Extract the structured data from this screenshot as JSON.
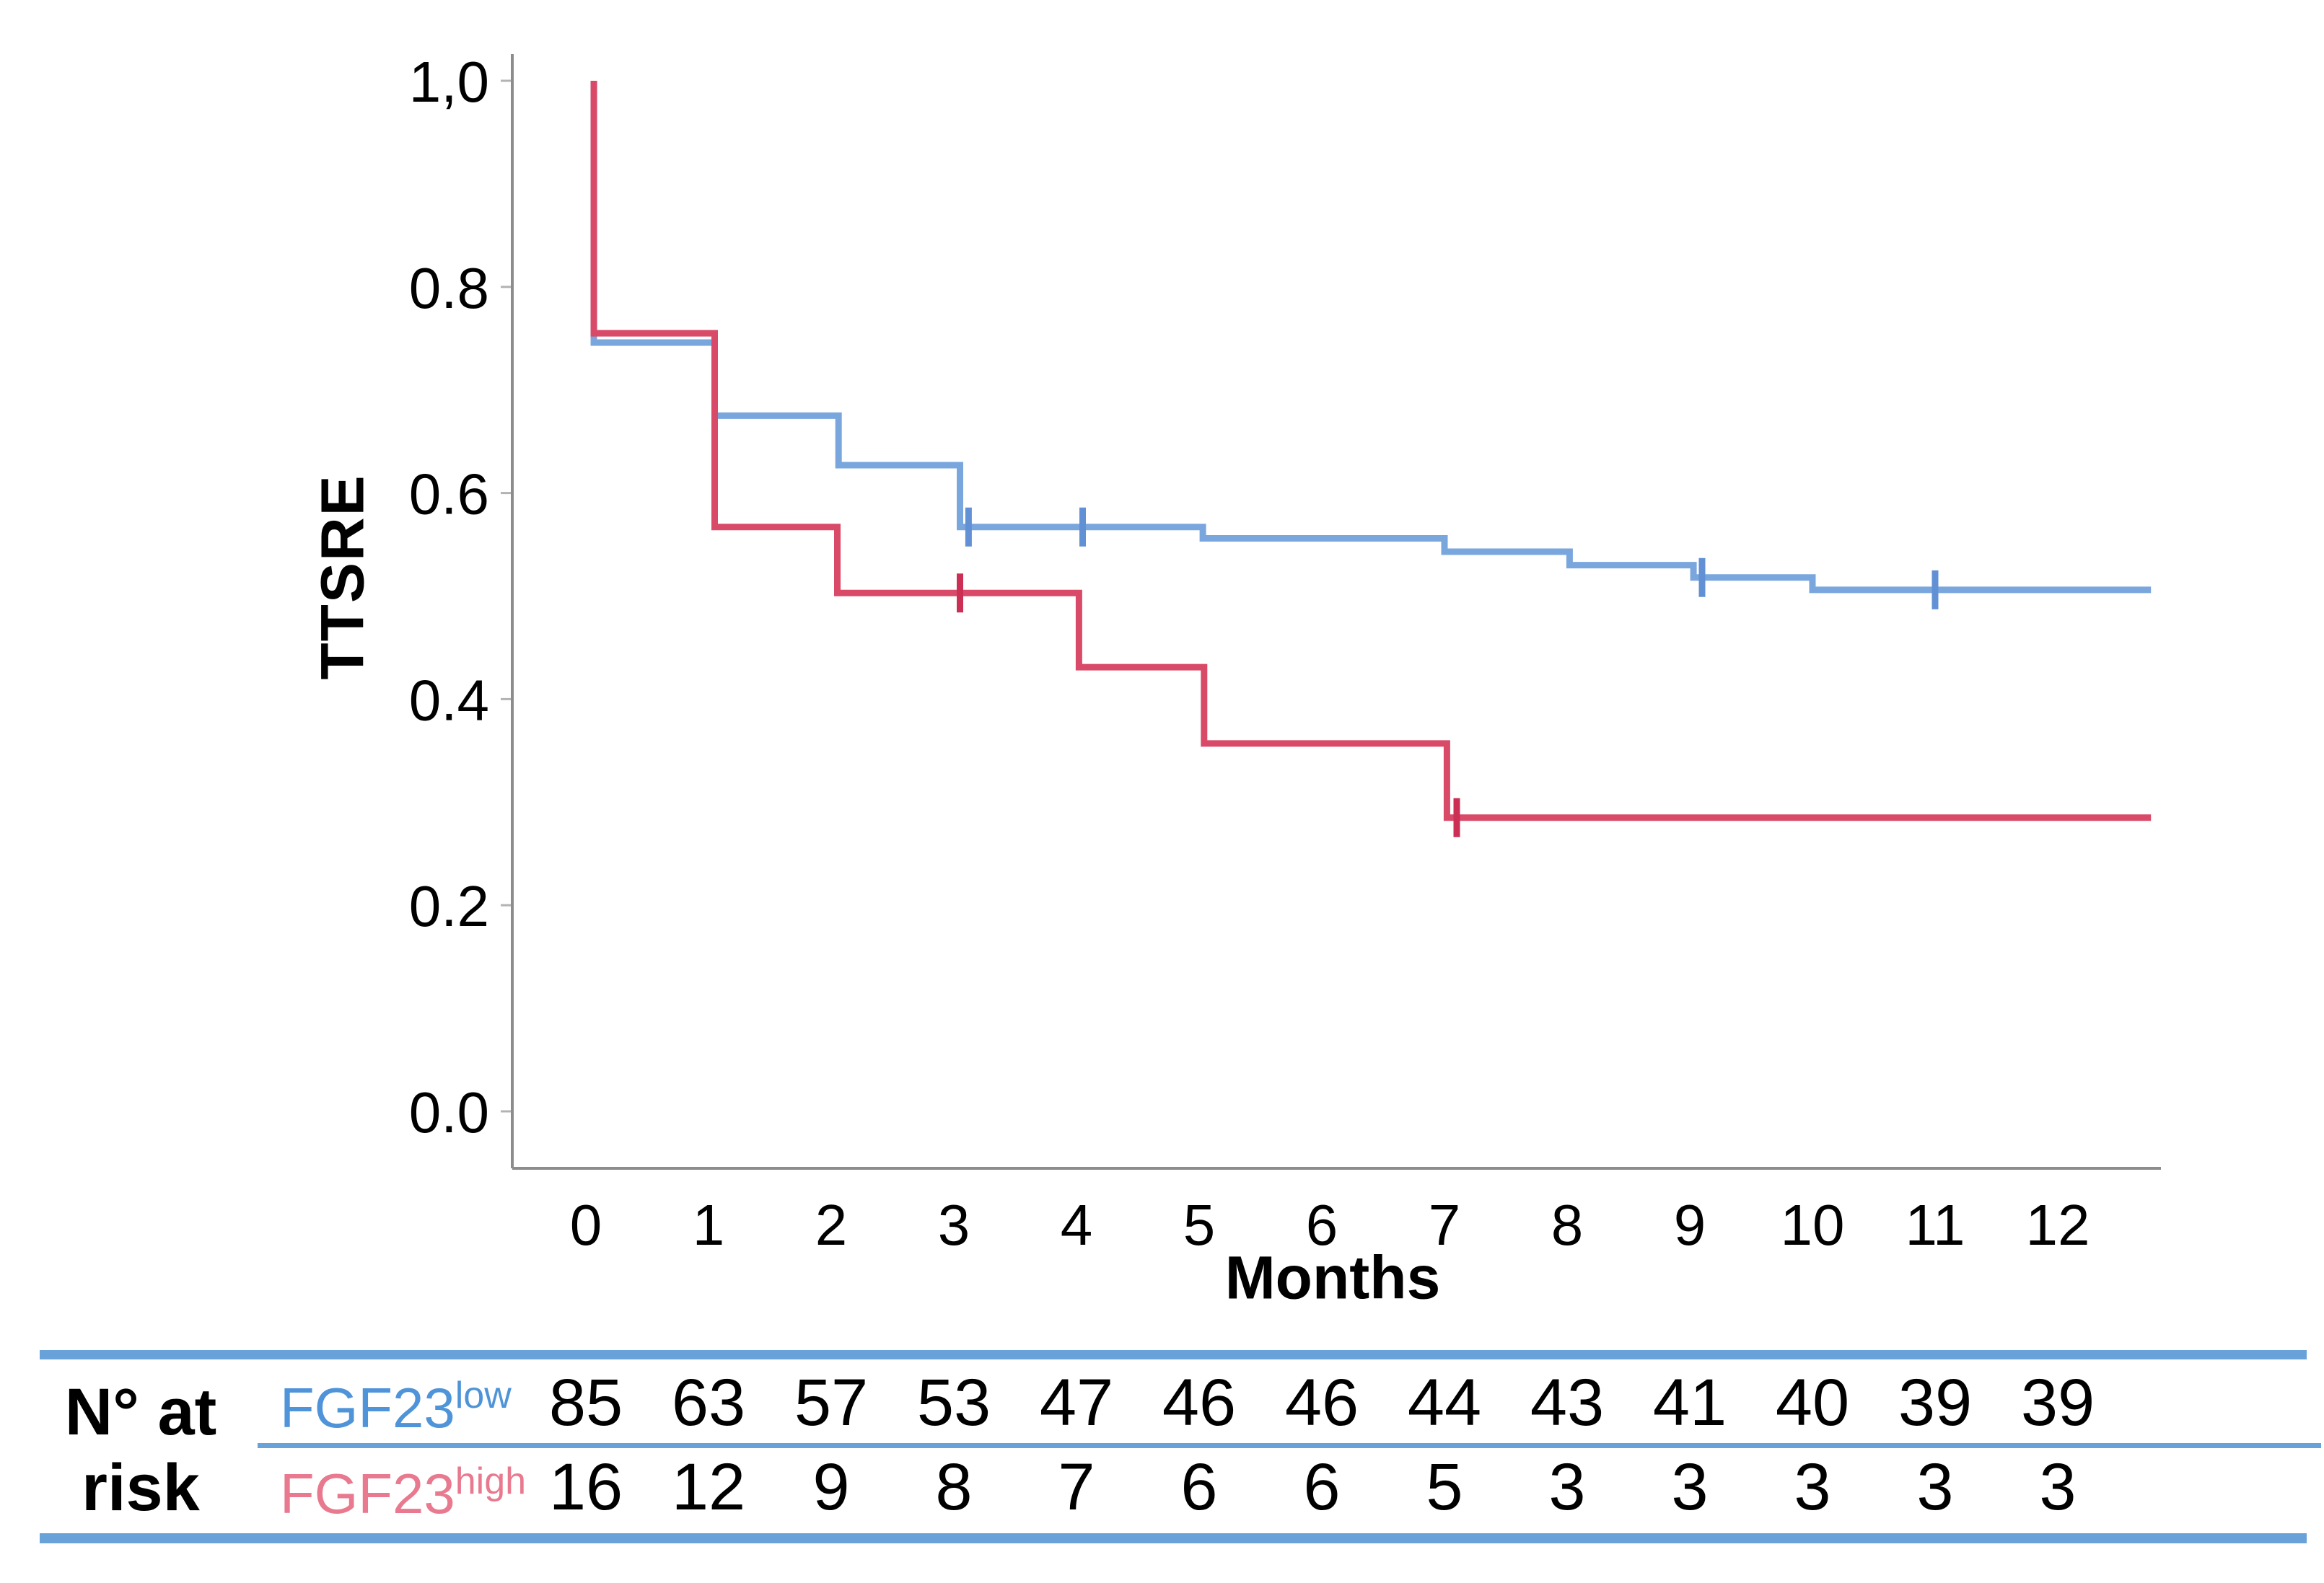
{
  "chart_data": {
    "type": "line",
    "subtype": "kaplan-meier-step",
    "title": "",
    "xlabel": "Months",
    "ylabel": "TTSRE",
    "xlim": [
      -0.6,
      12.8
    ],
    "ylim": [
      0.0,
      1.0
    ],
    "grid": false,
    "legend_position": "none",
    "x_ticks": [
      "0",
      "1",
      "2",
      "3",
      "4",
      "5",
      "6",
      "7",
      "8",
      "9",
      "10",
      "11",
      "12"
    ],
    "y_ticks": [
      {
        "label": "1,0",
        "value": 1.0
      },
      {
        "label": "0.8",
        "value": 0.8
      },
      {
        "label": "0.6",
        "value": 0.6
      },
      {
        "label": "0.4",
        "value": 0.4
      },
      {
        "label": "0.2",
        "value": 0.2
      },
      {
        "label": "0.0",
        "value": 0.0
      }
    ],
    "series": [
      {
        "name": "FGF23low",
        "color": "#7aa6de",
        "censor_color": "#6191d4",
        "end_t": 12.76,
        "steps": [
          {
            "t": 0.065,
            "v": 1.0
          },
          {
            "t": 0.065,
            "v": 0.746
          },
          {
            "t": 1.05,
            "v": 0.675
          },
          {
            "t": 2.06,
            "v": 0.627
          },
          {
            "t": 3.05,
            "v": 0.567
          },
          {
            "t": 5.03,
            "v": 0.556
          },
          {
            "t": 7.0,
            "v": 0.543
          },
          {
            "t": 8.02,
            "v": 0.53
          },
          {
            "t": 9.03,
            "v": 0.518
          },
          {
            "t": 10.0,
            "v": 0.506
          }
        ],
        "censors": [
          {
            "t": 3.12,
            "v": 0.567
          },
          {
            "t": 4.05,
            "v": 0.567
          },
          {
            "t": 9.1,
            "v": 0.518
          },
          {
            "t": 11.0,
            "v": 0.506
          }
        ]
      },
      {
        "name": "FGF23high",
        "color": "#d84a68",
        "censor_color": "#cb2f53",
        "end_t": 12.76,
        "steps": [
          {
            "t": 0.065,
            "v": 1.0
          },
          {
            "t": 0.065,
            "v": 0.755
          },
          {
            "t": 1.05,
            "v": 0.567
          },
          {
            "t": 2.05,
            "v": 0.503
          },
          {
            "t": 4.02,
            "v": 0.431
          },
          {
            "t": 5.04,
            "v": 0.357
          },
          {
            "t": 7.02,
            "v": 0.285
          }
        ],
        "censors": [
          {
            "t": 3.05,
            "v": 0.503
          },
          {
            "t": 7.1,
            "v": 0.285
          }
        ]
      }
    ]
  },
  "labels": {
    "y_axis": "TTSRE",
    "x_axis": "Months"
  },
  "risk_table": {
    "header_line1": "N° at",
    "header_line2": "risk",
    "months": [
      "0",
      "1",
      "2",
      "3",
      "4",
      "5",
      "6",
      "7",
      "8",
      "9",
      "10",
      "11",
      "12"
    ],
    "groups": [
      {
        "label": "FGF23",
        "superscript": "low",
        "color": "#4f94d8",
        "counts": [
          "85",
          "63",
          "57",
          "53",
          "47",
          "46",
          "46",
          "44",
          "43",
          "41",
          "40",
          "39",
          "39"
        ]
      },
      {
        "label": "FGF23",
        "superscript": "high",
        "color": "#e8798f",
        "counts": [
          "16",
          "12",
          "9",
          "8",
          "7",
          "6",
          "6",
          "5",
          "3",
          "3",
          "3",
          "3",
          "3"
        ]
      }
    ]
  },
  "colors": {
    "axis": "#8c8c8c",
    "tick": "#b3b3b3",
    "text": "#000000",
    "table_line": "#69a2d9",
    "background": "#ffffff"
  }
}
